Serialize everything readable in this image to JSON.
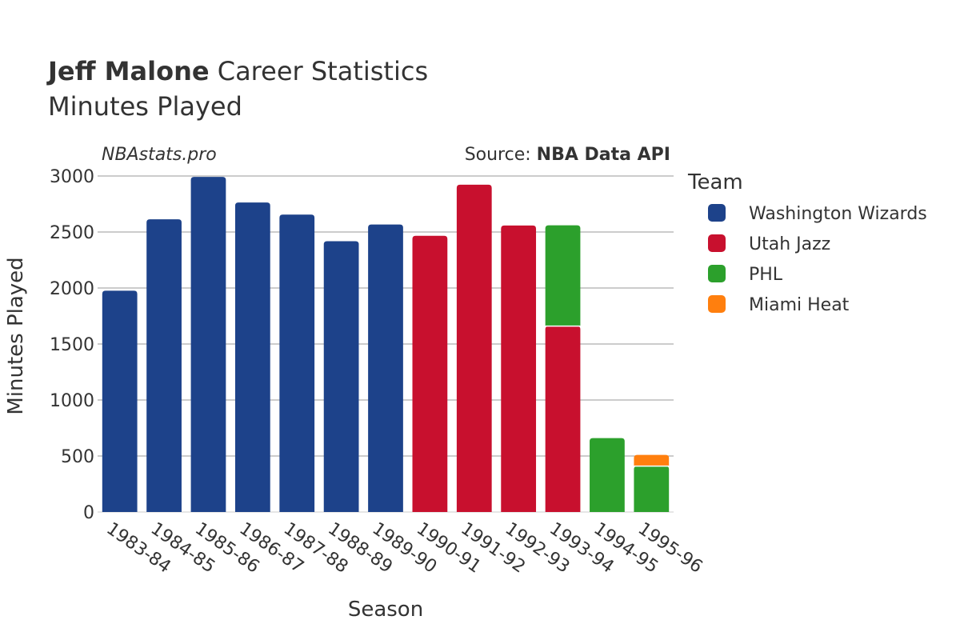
{
  "header": {
    "title_bold": "Jeff Malone",
    "title_rest": " Career Statistics",
    "subtitle": "Minutes Played",
    "watermark": "NBAstats.pro",
    "source_prefix": "Source: ",
    "source_name": "NBA Data API"
  },
  "chart_data": {
    "type": "bar",
    "stacked": true,
    "xlabel": "Season",
    "ylabel": "Minutes Played",
    "ylim": [
      0,
      3000
    ],
    "yticks": [
      0,
      500,
      1000,
      1500,
      2000,
      2500,
      3000
    ],
    "grid": true,
    "legend_title": "Team",
    "legend_position": "right",
    "categories": [
      "1983-84",
      "1984-85",
      "1985-86",
      "1986-87",
      "1987-88",
      "1988-89",
      "1989-90",
      "1990-91",
      "1991-92",
      "1992-93",
      "1993-94",
      "1994-95",
      "1995-96"
    ],
    "series": [
      {
        "name": "Washington Wizards",
        "color": "#1d428a",
        "values": [
          1976,
          2613,
          2992,
          2763,
          2655,
          2418,
          2567,
          0,
          0,
          0,
          0,
          0,
          0
        ]
      },
      {
        "name": "Utah Jazz",
        "color": "#c8102e",
        "values": [
          0,
          0,
          0,
          0,
          0,
          0,
          0,
          2466,
          2922,
          2558,
          1660,
          0,
          0
        ]
      },
      {
        "name": "PHL",
        "color": "#2ca02c",
        "values": [
          0,
          0,
          0,
          0,
          0,
          0,
          0,
          0,
          0,
          0,
          900,
          660,
          410
        ]
      },
      {
        "name": "Miami Heat",
        "color": "#ff7f0e",
        "values": [
          0,
          0,
          0,
          0,
          0,
          0,
          0,
          0,
          0,
          0,
          0,
          0,
          100
        ]
      }
    ]
  }
}
